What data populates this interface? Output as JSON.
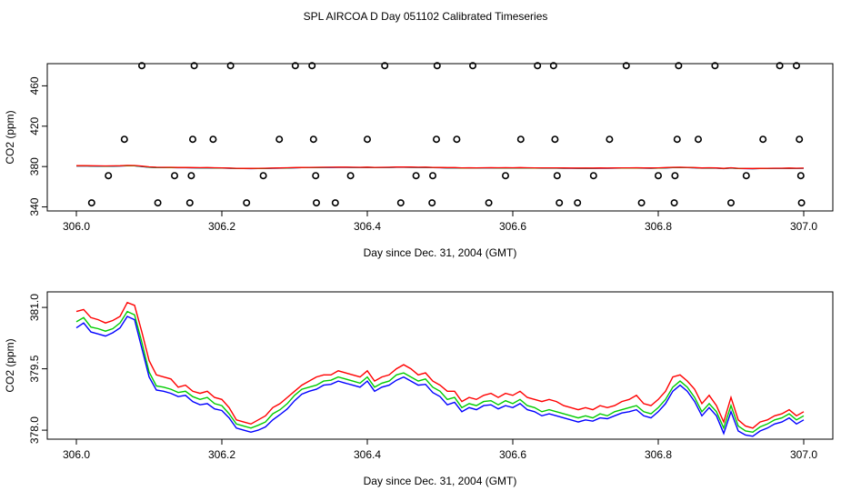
{
  "title": "SPL AIRCOA D  Day 051102  Calibrated Timeseries",
  "chart_data": [
    {
      "type": "scatter",
      "panel": "top",
      "xlabel": "Day since Dec. 31, 2004 (GMT)",
      "ylabel": "CO2 (ppm)",
      "xlim": [
        305.96,
        307.04
      ],
      "ylim": [
        336,
        482
      ],
      "xticks": [
        "306.0",
        "306.2",
        "306.4",
        "306.6",
        "306.8",
        "307.0"
      ],
      "yticks": [
        "340",
        "380",
        "420",
        "460"
      ],
      "circles": {
        "y480": [
          306.09,
          306.162,
          306.212,
          306.301,
          306.324,
          306.424,
          306.496,
          306.545,
          306.634,
          306.656,
          306.756,
          306.828,
          306.878,
          306.967,
          306.99
        ],
        "y407": [
          306.066,
          306.16,
          306.188,
          306.279,
          306.326,
          306.4,
          306.495,
          306.523,
          306.611,
          306.658,
          306.733,
          306.826,
          306.855,
          306.944,
          306.994
        ],
        "y371": [
          306.044,
          306.135,
          306.158,
          306.257,
          306.329,
          306.377,
          306.467,
          306.49,
          306.59,
          306.661,
          306.711,
          306.8,
          306.823,
          306.921,
          306.996
        ],
        "y344": [
          306.021,
          306.112,
          306.156,
          306.234,
          306.33,
          306.356,
          306.446,
          306.489,
          306.567,
          306.664,
          306.689,
          306.777,
          306.822,
          306.9,
          306.997
        ]
      },
      "series": [
        {
          "name": "red",
          "color": "#ff0000"
        },
        {
          "name": "green",
          "color": "#00cc00"
        },
        {
          "name": "blue",
          "color": "#0000ff"
        }
      ]
    },
    {
      "type": "line",
      "panel": "bottom",
      "xlabel": "Day since Dec. 31, 2004 (GMT)",
      "ylabel": "CO2 (ppm)",
      "xlim": [
        305.96,
        307.04
      ],
      "ylim": [
        377.78,
        381.38
      ],
      "xticks": [
        "306.0",
        "306.2",
        "306.4",
        "306.6",
        "306.8",
        "307.0"
      ],
      "yticks": [
        "378.0",
        "379.5",
        "381.0"
      ],
      "x": [
        306.0,
        306.01,
        306.02,
        306.03,
        306.04,
        306.05,
        306.06,
        306.07,
        306.08,
        306.09,
        306.1,
        306.11,
        306.12,
        306.13,
        306.14,
        306.15,
        306.16,
        306.17,
        306.18,
        306.19,
        306.2,
        306.21,
        306.22,
        306.23,
        306.24,
        306.25,
        306.26,
        306.27,
        306.28,
        306.29,
        306.3,
        306.31,
        306.32,
        306.33,
        306.34,
        306.35,
        306.36,
        306.37,
        306.38,
        306.39,
        306.4,
        306.41,
        306.42,
        306.43,
        306.44,
        306.45,
        306.46,
        306.47,
        306.48,
        306.49,
        306.5,
        306.51,
        306.52,
        306.53,
        306.54,
        306.55,
        306.56,
        306.57,
        306.58,
        306.59,
        306.6,
        306.61,
        306.62,
        306.63,
        306.64,
        306.65,
        306.66,
        306.67,
        306.68,
        306.69,
        306.7,
        306.71,
        306.72,
        306.73,
        306.74,
        306.75,
        306.76,
        306.77,
        306.78,
        306.79,
        306.8,
        306.81,
        306.82,
        306.83,
        306.84,
        306.85,
        306.86,
        306.87,
        306.88,
        306.89,
        306.9,
        306.91,
        306.92,
        306.93,
        306.94,
        306.95,
        306.96,
        306.97,
        306.98,
        306.99,
        307.0
      ],
      "series": [
        {
          "name": "red",
          "color": "#ff0000",
          "values": [
            380.9,
            380.95,
            380.75,
            380.7,
            380.62,
            380.68,
            380.78,
            381.12,
            381.05,
            380.4,
            379.7,
            379.35,
            379.3,
            379.25,
            379.05,
            379.1,
            378.95,
            378.9,
            378.95,
            378.8,
            378.75,
            378.55,
            378.25,
            378.2,
            378.15,
            378.25,
            378.35,
            378.55,
            378.65,
            378.8,
            378.95,
            379.1,
            379.2,
            379.3,
            379.35,
            379.35,
            379.45,
            379.4,
            379.35,
            379.3,
            379.45,
            379.2,
            379.3,
            379.35,
            379.5,
            379.6,
            379.5,
            379.35,
            379.4,
            379.2,
            379.1,
            378.95,
            378.95,
            378.7,
            378.8,
            378.75,
            378.85,
            378.9,
            378.8,
            378.9,
            378.85,
            378.95,
            378.8,
            378.75,
            378.7,
            378.75,
            378.7,
            378.6,
            378.55,
            378.5,
            378.55,
            378.5,
            378.6,
            378.55,
            378.6,
            378.7,
            378.75,
            378.85,
            378.65,
            378.6,
            378.75,
            378.95,
            379.3,
            379.35,
            379.2,
            379.0,
            378.65,
            378.85,
            378.6,
            378.2,
            378.8,
            378.25,
            378.1,
            378.05,
            378.2,
            378.25,
            378.35,
            378.4,
            378.5,
            378.35,
            378.45
          ]
        },
        {
          "name": "green",
          "color": "#00cc00",
          "values": [
            380.65,
            380.75,
            380.52,
            380.48,
            380.42,
            380.48,
            380.62,
            380.9,
            380.82,
            380.15,
            379.42,
            379.08,
            379.05,
            379.0,
            378.92,
            378.95,
            378.82,
            378.75,
            378.8,
            378.65,
            378.6,
            378.4,
            378.15,
            378.1,
            378.05,
            378.12,
            378.2,
            378.4,
            378.5,
            378.65,
            378.85,
            379.0,
            379.05,
            379.1,
            379.2,
            379.22,
            379.3,
            379.25,
            379.2,
            379.15,
            379.3,
            379.05,
            379.15,
            379.2,
            379.35,
            379.4,
            379.3,
            379.2,
            379.25,
            379.05,
            378.95,
            378.75,
            378.8,
            378.55,
            378.65,
            378.6,
            378.7,
            378.72,
            378.62,
            378.72,
            378.65,
            378.75,
            378.6,
            378.55,
            378.45,
            378.5,
            378.45,
            378.4,
            378.35,
            378.3,
            378.35,
            378.3,
            378.4,
            378.35,
            378.45,
            378.5,
            378.55,
            378.6,
            378.45,
            378.4,
            378.55,
            378.75,
            379.05,
            379.2,
            379.05,
            378.8,
            378.45,
            378.65,
            378.45,
            378.05,
            378.6,
            378.1,
            377.98,
            377.95,
            378.08,
            378.15,
            378.25,
            378.3,
            378.4,
            378.25,
            378.35
          ]
        },
        {
          "name": "blue",
          "color": "#0000ff",
          "values": [
            380.5,
            380.62,
            380.4,
            380.35,
            380.3,
            380.38,
            380.5,
            380.78,
            380.7,
            380.0,
            379.3,
            378.98,
            378.95,
            378.9,
            378.82,
            378.85,
            378.7,
            378.62,
            378.65,
            378.52,
            378.48,
            378.3,
            378.05,
            378.0,
            377.95,
            378.0,
            378.08,
            378.25,
            378.38,
            378.52,
            378.72,
            378.88,
            378.95,
            379.0,
            379.1,
            379.12,
            379.2,
            379.15,
            379.1,
            379.05,
            379.2,
            378.95,
            379.05,
            379.1,
            379.22,
            379.3,
            379.2,
            379.1,
            379.12,
            378.92,
            378.82,
            378.62,
            378.68,
            378.45,
            378.55,
            378.5,
            378.6,
            378.62,
            378.52,
            378.6,
            378.55,
            378.65,
            378.5,
            378.45,
            378.35,
            378.4,
            378.35,
            378.3,
            378.25,
            378.2,
            378.25,
            378.22,
            378.3,
            378.28,
            378.35,
            378.42,
            378.45,
            378.5,
            378.35,
            378.3,
            378.45,
            378.65,
            378.95,
            379.1,
            378.95,
            378.7,
            378.35,
            378.55,
            378.35,
            377.92,
            378.45,
            377.98,
            377.88,
            377.85,
            377.98,
            378.05,
            378.15,
            378.2,
            378.3,
            378.15,
            378.25
          ]
        }
      ]
    }
  ]
}
